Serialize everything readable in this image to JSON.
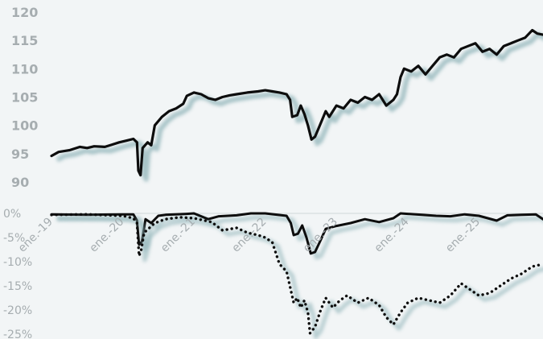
{
  "colors": {
    "background": "#f2f5f6",
    "line": "#0d0d0d",
    "shadow": "#8fb3b8",
    "tick_text": "#a6adb0",
    "zero_line": "#d0d6d8"
  },
  "chart_data": [
    {
      "type": "line",
      "title": "",
      "xlabel": "",
      "ylabel": "",
      "ylim": [
        90,
        120
      ],
      "y_ticks": [
        "90",
        "95",
        "100",
        "105",
        "110",
        "115",
        "120"
      ],
      "grid": false,
      "x_range": [
        2019.0,
        2025.9
      ],
      "series": [
        {
          "points": [
            [
              2019.0,
              94.6
            ],
            [
              2019.1,
              95.3
            ],
            [
              2019.25,
              95.6
            ],
            [
              2019.4,
              96.2
            ],
            [
              2019.5,
              96.0
            ],
            [
              2019.6,
              96.3
            ],
            [
              2019.75,
              96.2
            ],
            [
              2019.85,
              96.6
            ],
            [
              2019.95,
              97.0
            ],
            [
              2020.05,
              97.3
            ],
            [
              2020.15,
              97.6
            ],
            [
              2020.2,
              97.0
            ],
            [
              2020.22,
              92.0
            ],
            [
              2020.25,
              91.2
            ],
            [
              2020.28,
              96.0
            ],
            [
              2020.35,
              97.0
            ],
            [
              2020.4,
              96.5
            ],
            [
              2020.45,
              100.0
            ],
            [
              2020.55,
              101.5
            ],
            [
              2020.65,
              102.5
            ],
            [
              2020.75,
              103.0
            ],
            [
              2020.85,
              103.8
            ],
            [
              2020.9,
              105.2
            ],
            [
              2021.0,
              105.8
            ],
            [
              2021.1,
              105.5
            ],
            [
              2021.2,
              104.8
            ],
            [
              2021.3,
              104.5
            ],
            [
              2021.4,
              105.0
            ],
            [
              2021.5,
              105.3
            ],
            [
              2021.6,
              105.5
            ],
            [
              2021.75,
              105.8
            ],
            [
              2021.9,
              106.0
            ],
            [
              2022.0,
              106.2
            ],
            [
              2022.1,
              106.0
            ],
            [
              2022.2,
              105.8
            ],
            [
              2022.3,
              105.5
            ],
            [
              2022.35,
              104.5
            ],
            [
              2022.38,
              101.5
            ],
            [
              2022.45,
              101.8
            ],
            [
              2022.5,
              103.5
            ],
            [
              2022.55,
              102.0
            ],
            [
              2022.6,
              100.0
            ],
            [
              2022.65,
              97.5
            ],
            [
              2022.7,
              98.0
            ],
            [
              2022.75,
              99.5
            ],
            [
              2022.85,
              102.5
            ],
            [
              2022.9,
              101.5
            ],
            [
              2023.0,
              103.5
            ],
            [
              2023.1,
              103.0
            ],
            [
              2023.2,
              104.5
            ],
            [
              2023.3,
              104.0
            ],
            [
              2023.4,
              105.0
            ],
            [
              2023.5,
              104.5
            ],
            [
              2023.6,
              105.5
            ],
            [
              2023.7,
              103.5
            ],
            [
              2023.8,
              104.5
            ],
            [
              2023.85,
              105.5
            ],
            [
              2023.9,
              108.5
            ],
            [
              2023.95,
              110.0
            ],
            [
              2024.05,
              109.5
            ],
            [
              2024.15,
              110.5
            ],
            [
              2024.25,
              109.0
            ],
            [
              2024.35,
              110.5
            ],
            [
              2024.45,
              112.0
            ],
            [
              2024.55,
              112.5
            ],
            [
              2024.65,
              112.0
            ],
            [
              2024.75,
              113.5
            ],
            [
              2024.85,
              114.0
            ],
            [
              2024.95,
              114.5
            ],
            [
              2025.05,
              113.0
            ],
            [
              2025.15,
              113.5
            ],
            [
              2025.25,
              112.5
            ],
            [
              2025.35,
              114.0
            ],
            [
              2025.45,
              114.5
            ],
            [
              2025.55,
              115.0
            ],
            [
              2025.65,
              115.5
            ],
            [
              2025.75,
              116.8
            ],
            [
              2025.82,
              116.2
            ],
            [
              2025.9,
              116.0
            ]
          ]
        }
      ]
    },
    {
      "type": "line",
      "title": "",
      "xlabel": "",
      "ylabel": "",
      "ylim": [
        -25,
        0
      ],
      "y_ticks": [
        "0%",
        "-5%",
        "-10%",
        "-15%",
        "-20%",
        "-25%"
      ],
      "x_ticks": [
        "ene.-19",
        "ene.-20",
        "ene.-21",
        "ene.-22",
        "ene.-23",
        "ene.-24",
        "ene.-25"
      ],
      "x_tick_values": [
        2019.0,
        2020.0,
        2021.0,
        2022.0,
        2023.0,
        2024.0,
        2025.0
      ],
      "grid": false,
      "x_range": [
        2019.0,
        2025.9
      ],
      "series": [
        {
          "style": "solid",
          "points": [
            [
              2019.0,
              -0.2
            ],
            [
              2019.5,
              -0.3
            ],
            [
              2020.0,
              -0.2
            ],
            [
              2020.15,
              -0.2
            ],
            [
              2020.2,
              -1.5
            ],
            [
              2020.23,
              -6.5
            ],
            [
              2020.27,
              -5.8
            ],
            [
              2020.32,
              -1.2
            ],
            [
              2020.4,
              -2.0
            ],
            [
              2020.5,
              -0.5
            ],
            [
              2020.6,
              -0.3
            ],
            [
              2020.9,
              -0.1
            ],
            [
              2021.0,
              0.0
            ],
            [
              2021.2,
              -1.2
            ],
            [
              2021.35,
              -0.6
            ],
            [
              2021.6,
              -0.4
            ],
            [
              2021.8,
              0.0
            ],
            [
              2022.0,
              0.0
            ],
            [
              2022.3,
              -0.5
            ],
            [
              2022.36,
              -2.0
            ],
            [
              2022.4,
              -4.5
            ],
            [
              2022.46,
              -4.2
            ],
            [
              2022.52,
              -2.5
            ],
            [
              2022.58,
              -5.0
            ],
            [
              2022.64,
              -8.3
            ],
            [
              2022.7,
              -8.0
            ],
            [
              2022.78,
              -5.5
            ],
            [
              2022.85,
              -3.2
            ],
            [
              2023.0,
              -2.6
            ],
            [
              2023.2,
              -2.0
            ],
            [
              2023.4,
              -1.2
            ],
            [
              2023.6,
              -1.8
            ],
            [
              2023.8,
              -1.0
            ],
            [
              2023.9,
              0.0
            ],
            [
              2024.2,
              -0.3
            ],
            [
              2024.4,
              -0.5
            ],
            [
              2024.6,
              -0.6
            ],
            [
              2024.8,
              -0.2
            ],
            [
              2025.0,
              -0.5
            ],
            [
              2025.25,
              -1.5
            ],
            [
              2025.4,
              -0.4
            ],
            [
              2025.6,
              -0.3
            ],
            [
              2025.8,
              -0.2
            ],
            [
              2025.9,
              -1.2
            ]
          ]
        },
        {
          "style": "dotted",
          "points": [
            [
              2019.0,
              -0.3
            ],
            [
              2019.5,
              -0.2
            ],
            [
              2020.0,
              -0.5
            ],
            [
              2020.15,
              -1.0
            ],
            [
              2020.2,
              -2.0
            ],
            [
              2020.23,
              -8.8
            ],
            [
              2020.26,
              -7.5
            ],
            [
              2020.3,
              -4.0
            ],
            [
              2020.45,
              -2.0
            ],
            [
              2020.6,
              -1.2
            ],
            [
              2020.8,
              -0.8
            ],
            [
              2021.0,
              -1.0
            ],
            [
              2021.25,
              -1.8
            ],
            [
              2021.4,
              -3.5
            ],
            [
              2021.6,
              -3.0
            ],
            [
              2021.75,
              -4.0
            ],
            [
              2021.9,
              -4.5
            ],
            [
              2022.0,
              -5.0
            ],
            [
              2022.1,
              -6.0
            ],
            [
              2022.2,
              -10.5
            ],
            [
              2022.3,
              -12.0
            ],
            [
              2022.4,
              -18.5
            ],
            [
              2022.45,
              -17.5
            ],
            [
              2022.5,
              -19.5
            ],
            [
              2022.55,
              -18.0
            ],
            [
              2022.6,
              -20.5
            ],
            [
              2022.63,
              -24.8
            ],
            [
              2022.7,
              -23.5
            ],
            [
              2022.78,
              -20.0
            ],
            [
              2022.85,
              -17.5
            ],
            [
              2022.95,
              -19.5
            ],
            [
              2023.05,
              -18.0
            ],
            [
              2023.15,
              -17.0
            ],
            [
              2023.3,
              -18.5
            ],
            [
              2023.45,
              -17.5
            ],
            [
              2023.6,
              -19.0
            ],
            [
              2023.7,
              -21.5
            ],
            [
              2023.8,
              -23.0
            ],
            [
              2023.9,
              -20.5
            ],
            [
              2024.0,
              -18.5
            ],
            [
              2024.15,
              -17.5
            ],
            [
              2024.3,
              -18.0
            ],
            [
              2024.45,
              -18.5
            ],
            [
              2024.6,
              -17.0
            ],
            [
              2024.75,
              -14.5
            ],
            [
              2024.9,
              -16.0
            ],
            [
              2025.0,
              -17.0
            ],
            [
              2025.15,
              -16.5
            ],
            [
              2025.3,
              -15.0
            ],
            [
              2025.45,
              -13.5
            ],
            [
              2025.6,
              -12.5
            ],
            [
              2025.75,
              -11.0
            ],
            [
              2025.9,
              -10.5
            ]
          ]
        }
      ]
    }
  ]
}
